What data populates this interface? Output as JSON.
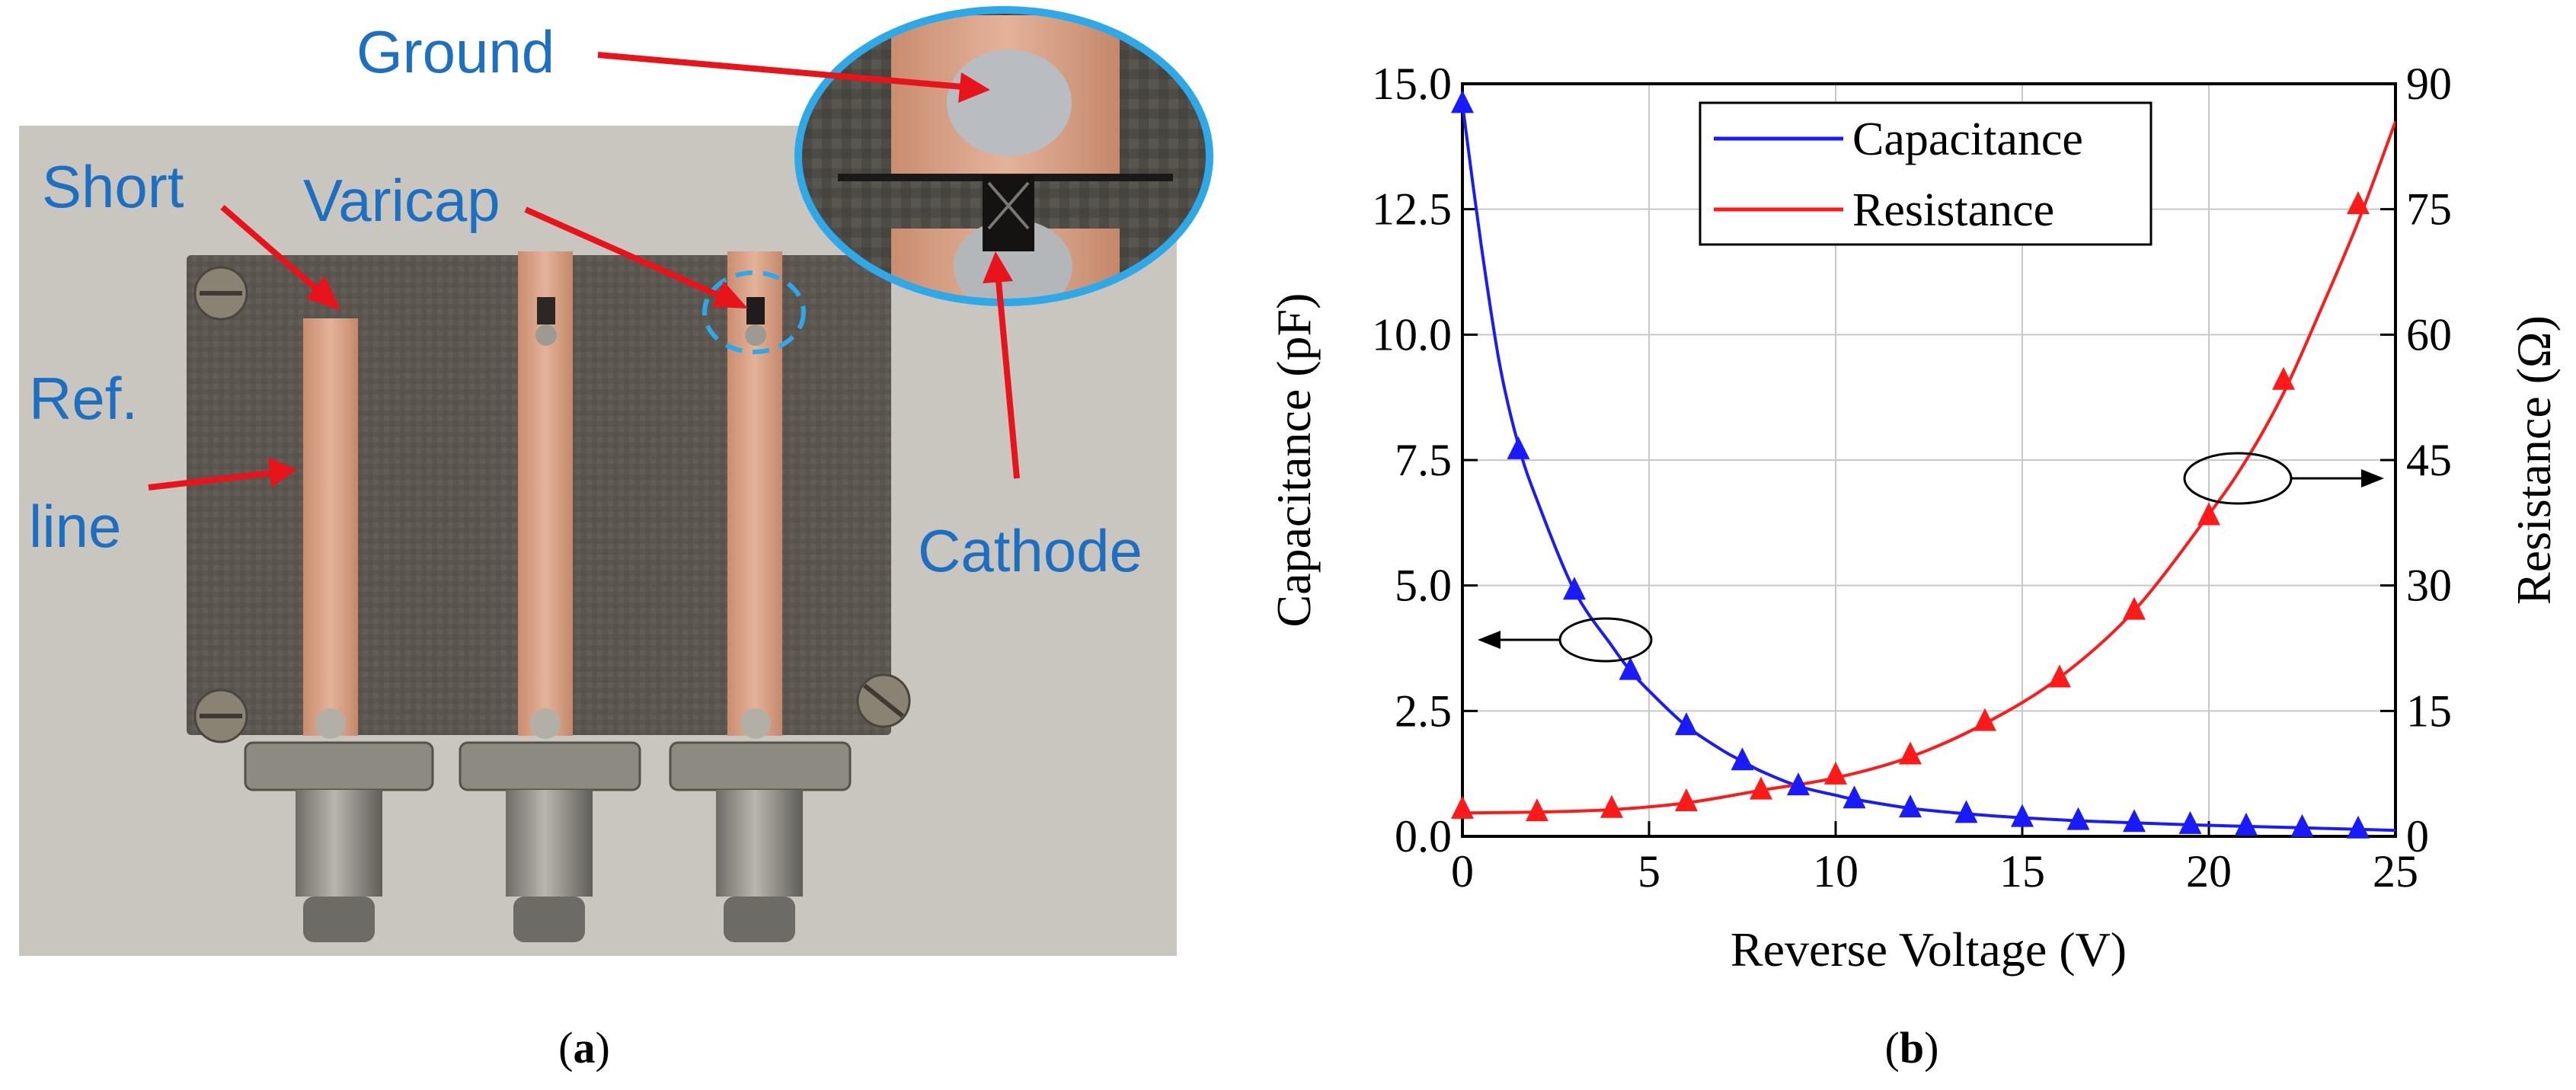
{
  "panel_a": {
    "caption": "a",
    "labels": {
      "ground": "Ground",
      "short": "Short",
      "varicap": "Varicap",
      "ref_line_1": "Ref.",
      "ref_line_2": "line",
      "cathode": "Cathode"
    },
    "colors": {
      "label": "#1d6fc2",
      "arrow": "#e8141c",
      "board": "#5a5650",
      "copper": "#d9a184"
    }
  },
  "panel_b": {
    "caption": "b"
  },
  "chart_data": {
    "type": "line",
    "xlabel": "Reverse Voltage (V)",
    "ylabel_left": "Capacitance (pF)",
    "ylabel_right": "Resistance (Ω)",
    "xlim": [
      0,
      25
    ],
    "ylim_left": [
      0,
      15
    ],
    "ylim_right": [
      0,
      90
    ],
    "x_ticks": [
      "0",
      "5",
      "10",
      "15",
      "20",
      "25"
    ],
    "y_ticks_left": [
      "0.0",
      "2.5",
      "5.0",
      "7.5",
      "10.0",
      "12.5",
      "15.0"
    ],
    "y_ticks_right": [
      "0",
      "15",
      "30",
      "45",
      "60",
      "75",
      "90"
    ],
    "grid": true,
    "legend_position": "top-center",
    "series": [
      {
        "name": "Capacitance",
        "axis": "left",
        "color": "#1a1aff",
        "curve_x": [
          0,
          0.5,
          1,
          1.5,
          2,
          3,
          4,
          4.5,
          5,
          6,
          7,
          7.5,
          8,
          9,
          10,
          10.5,
          12,
          13.5,
          15,
          16.5,
          18,
          19.5,
          21,
          22.5,
          24,
          25
        ],
        "curve_y": [
          14.6,
          11.8,
          9.4,
          7.8,
          6.7,
          4.9,
          3.8,
          3.3,
          2.9,
          2.2,
          1.7,
          1.5,
          1.3,
          1.0,
          0.82,
          0.74,
          0.56,
          0.45,
          0.37,
          0.31,
          0.27,
          0.23,
          0.2,
          0.17,
          0.14,
          0.12
        ],
        "marker_x": [
          0,
          1.5,
          3,
          4.5,
          6,
          7.5,
          9,
          10.5,
          12,
          13.5,
          15,
          16.5,
          18,
          19.5,
          21,
          22.5,
          24
        ],
        "marker_y": [
          14.6,
          7.7,
          4.9,
          3.3,
          2.2,
          1.5,
          1.0,
          0.74,
          0.56,
          0.45,
          0.37,
          0.31,
          0.27,
          0.23,
          0.2,
          0.17,
          0.14
        ]
      },
      {
        "name": "Resistance",
        "axis": "right",
        "color": "#ff1a1a",
        "curve_x": [
          0,
          2,
          4,
          6,
          8,
          10,
          12,
          14,
          16,
          18,
          20,
          21,
          22,
          23,
          24,
          25
        ],
        "curve_y": [
          2.8,
          2.9,
          3.2,
          4.0,
          5.5,
          7.0,
          9.5,
          13.5,
          19.0,
          27.0,
          38.5,
          45.0,
          53.0,
          63.0,
          73.5,
          85.5
        ],
        "marker_x": [
          0,
          2,
          4,
          6,
          8,
          10,
          12,
          14,
          16,
          18,
          20,
          22,
          24
        ],
        "marker_y": [
          3.2,
          2.9,
          3.3,
          4.1,
          5.5,
          7.3,
          9.7,
          13.7,
          18.9,
          27.0,
          38.3,
          54.5,
          75.5
        ]
      }
    ]
  }
}
